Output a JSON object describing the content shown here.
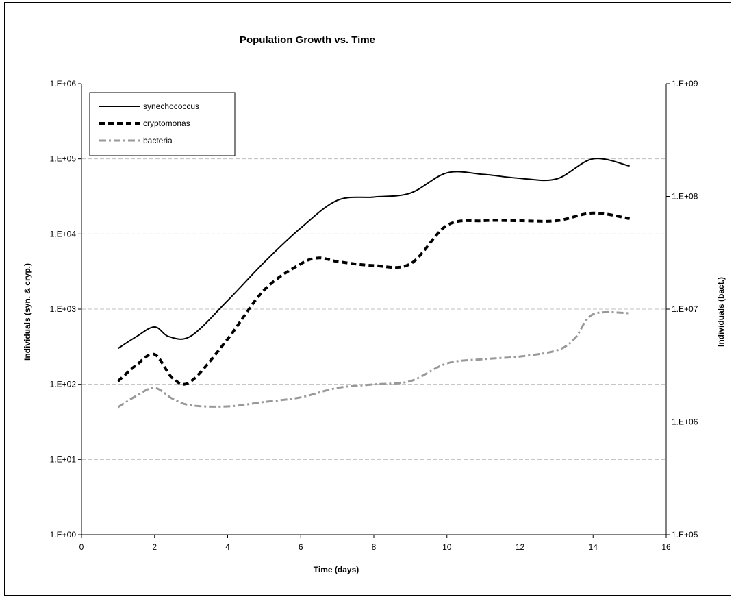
{
  "chart_data": {
    "type": "line",
    "title": "Population Growth vs. Time",
    "xlabel": "Time (days)",
    "ylabel_left": "Individuals (syn. & cryp.)",
    "ylabel_right": "Individuals (bact.)",
    "xlim": [
      0,
      16
    ],
    "x_ticks": [
      "0",
      "2",
      "4",
      "6",
      "8",
      "10",
      "12",
      "14",
      "16"
    ],
    "y_left_scale": "log",
    "y_left_lim": [
      1,
      1000000
    ],
    "y_left_ticks": [
      "1.E+00",
      "1.E+01",
      "1.E+02",
      "1.E+03",
      "1.E+04",
      "1.E+05",
      "1.E+06"
    ],
    "y_right_scale": "log",
    "y_right_lim": [
      100000,
      1000000000
    ],
    "y_right_ticks": [
      "1.E+05",
      "1.E+06",
      "1.E+07",
      "1.E+08",
      "1.E+09"
    ],
    "grid": "horizontal dashed gridlines",
    "legend_position": "top-left",
    "series": [
      {
        "name": "synechococcus",
        "axis": "left",
        "color": "#000000",
        "style": "solid",
        "x": [
          1,
          1.5,
          2,
          2.4,
          3,
          4,
          5,
          6,
          7,
          8,
          9,
          10,
          11,
          12,
          13,
          14,
          15
        ],
        "y": [
          300,
          430,
          580,
          430,
          440,
          1300,
          4200,
          12000,
          28000,
          31000,
          35000,
          65000,
          62000,
          55000,
          54000,
          100000,
          80000
        ]
      },
      {
        "name": "cryptomonas",
        "axis": "left",
        "color": "#000000",
        "style": "dashed",
        "x": [
          1,
          1.5,
          2,
          2.5,
          3,
          4,
          5,
          6,
          6.5,
          7,
          8,
          9,
          10,
          11,
          12,
          13,
          14,
          15
        ],
        "y": [
          110,
          180,
          250,
          120,
          110,
          400,
          1800,
          4000,
          4800,
          4300,
          3800,
          4000,
          13000,
          15000,
          15000,
          15000,
          19000,
          16000
        ]
      },
      {
        "name": "bacteria",
        "axis": "right",
        "color": "#999999",
        "style": "dash-dot",
        "x": [
          1,
          1.5,
          2,
          2.5,
          3,
          4,
          5,
          6,
          7,
          8,
          9,
          10,
          11,
          12,
          13,
          13.5,
          14,
          15
        ],
        "y": [
          1350000,
          1700000,
          2000000,
          1600000,
          1400000,
          1370000,
          1500000,
          1650000,
          2000000,
          2150000,
          2300000,
          3300000,
          3600000,
          3800000,
          4300000,
          5500000,
          9000000,
          9200000
        ]
      }
    ]
  }
}
